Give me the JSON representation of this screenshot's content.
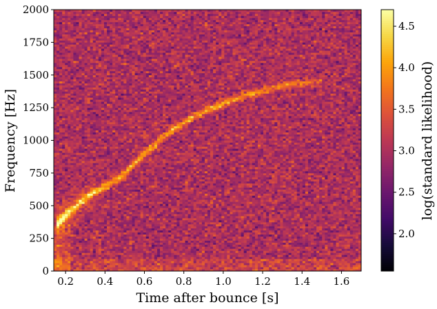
{
  "chart_data": {
    "type": "heatmap",
    "title": "",
    "xlabel": "Time after bounce [s]",
    "ylabel": "Frequency [Hz]",
    "xlim": [
      0.14,
      1.7
    ],
    "ylim": [
      0,
      2000
    ],
    "x_ticks": [
      0.2,
      0.4,
      0.6,
      0.8,
      1.0,
      1.2,
      1.4,
      1.6
    ],
    "x_tick_labels": [
      "0.2",
      "0.4",
      "0.6",
      "0.8",
      "1.0",
      "1.2",
      "1.4",
      "1.6"
    ],
    "y_ticks": [
      0,
      250,
      500,
      750,
      1000,
      1250,
      1500,
      1750,
      2000
    ],
    "y_tick_labels": [
      "0",
      "250",
      "500",
      "750",
      "1000",
      "1250",
      "1500",
      "1750",
      "2000"
    ],
    "colorbar": {
      "label": "log(standard likelihood)",
      "colormap": "inferno",
      "range": [
        1.55,
        4.7
      ],
      "ticks": [
        2.0,
        2.5,
        3.0,
        3.5,
        4.0,
        4.5
      ],
      "tick_labels": [
        "2.0",
        "2.5",
        "3.0",
        "3.5",
        "4.0",
        "4.5"
      ]
    },
    "background_level": 3.0,
    "ridge_track": {
      "time": [
        0.15,
        0.2,
        0.25,
        0.3,
        0.35,
        0.4,
        0.45,
        0.5,
        0.55,
        0.6,
        0.65,
        0.7,
        0.75,
        0.8,
        0.85,
        0.9,
        0.95,
        1.0,
        1.05,
        1.1,
        1.15,
        1.2,
        1.25,
        1.3,
        1.35,
        1.4,
        1.45,
        1.5
      ],
      "frequency": [
        350,
        430,
        490,
        560,
        610,
        650,
        690,
        740,
        830,
        900,
        960,
        1030,
        1090,
        1130,
        1180,
        1220,
        1250,
        1280,
        1310,
        1340,
        1360,
        1380,
        1400,
        1420,
        1430,
        1440,
        1450,
        1450
      ],
      "level": [
        4.3,
        4.4,
        4.2,
        4.1,
        4.1,
        4.2,
        4.1,
        4.2,
        4.1,
        4.1,
        4.1,
        4.0,
        4.2,
        4.0,
        4.0,
        4.0,
        4.0,
        4.1,
        3.9,
        3.9,
        3.9,
        3.9,
        3.8,
        3.8,
        3.8,
        3.8,
        3.7,
        3.6
      ]
    }
  }
}
